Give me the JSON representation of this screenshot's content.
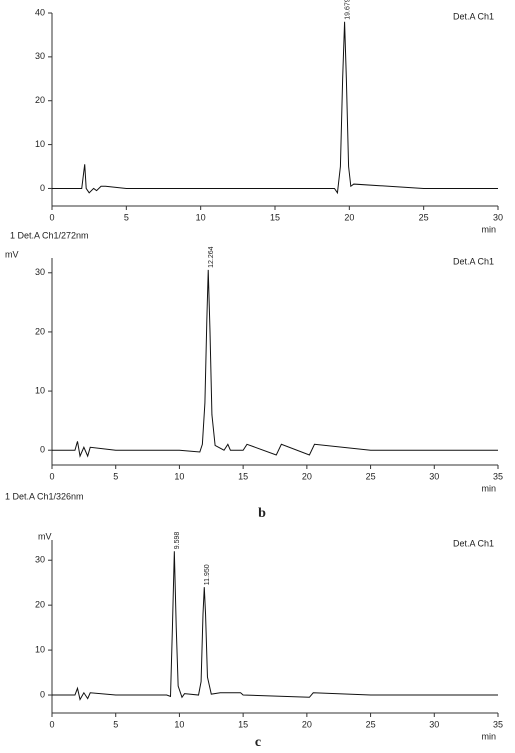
{
  "chart_data": [
    {
      "type": "line",
      "detector": "Det.A Ch1",
      "x_label": "min",
      "footer": "1 Det.A Ch1/272nm",
      "x": [
        0,
        2.0,
        2.2,
        2.3,
        2.5,
        2.8,
        3.0,
        3.3,
        3.6,
        5,
        10,
        15,
        19.0,
        19.2,
        19.4,
        19.55,
        19.68,
        19.8,
        19.95,
        20.1,
        20.3,
        25,
        30
      ],
      "values": [
        0,
        0,
        5.5,
        0,
        -1,
        0,
        -0.5,
        0.5,
        0.5,
        0,
        0,
        0,
        0,
        -1,
        5,
        25,
        38,
        25,
        5,
        0.5,
        1,
        0,
        0
      ],
      "color": "#111111",
      "peaks": [
        {
          "value": 19.679,
          "label": "19.679",
          "y": 38
        }
      ],
      "xlim": [
        0,
        30
      ],
      "xticks": [
        0,
        5,
        10,
        15,
        20,
        25,
        30
      ],
      "ylim": [
        -4,
        40
      ],
      "yticks": [
        0,
        10,
        20,
        30,
        40
      ]
    },
    {
      "type": "line",
      "y_label": "mV",
      "detector": "Det.A Ch1",
      "x_label": "min",
      "footer": "1 Det.A Ch1/326nm",
      "panel": "b",
      "x": [
        0,
        1.8,
        2.0,
        2.2,
        2.5,
        2.8,
        3.0,
        5,
        10,
        11.6,
        11.8,
        12.0,
        12.15,
        12.26,
        12.4,
        12.55,
        12.8,
        13.5,
        13.8,
        14,
        15,
        15.3,
        17.6,
        18.0,
        20.2,
        20.6,
        25,
        30,
        35
      ],
      "values": [
        0,
        0,
        1.5,
        -1,
        0.5,
        -1,
        0.5,
        0,
        0,
        -0.3,
        1,
        8,
        22,
        30.5,
        20,
        6,
        0.8,
        0,
        1,
        0,
        0,
        1,
        -0.8,
        1,
        -0.8,
        1,
        0,
        0,
        0
      ],
      "color": "#111111",
      "peaks": [
        {
          "value": 12.264,
          "label": "12.264",
          "y": 30.5
        }
      ],
      "xlim": [
        0,
        35
      ],
      "xticks": [
        0,
        5,
        10,
        15,
        20,
        25,
        30,
        35
      ],
      "ylim": [
        -2.5,
        32.5
      ],
      "yticks": [
        0,
        10,
        20,
        30
      ]
    },
    {
      "type": "line",
      "y_label": "mV",
      "detector": "Det.A Ch1",
      "x_label": "min",
      "panel": "c",
      "x": [
        0,
        1.8,
        2.0,
        2.2,
        2.5,
        2.8,
        3.0,
        5,
        9,
        9.3,
        9.45,
        9.6,
        9.75,
        9.9,
        10.2,
        10.4,
        11.5,
        11.7,
        11.85,
        11.95,
        12.05,
        12.2,
        12.5,
        13.2,
        14.8,
        15,
        20.2,
        20.5,
        25,
        30,
        35
      ],
      "values": [
        0,
        0,
        1.5,
        -1,
        0.5,
        -0.8,
        0.5,
        0,
        0,
        -0.3,
        15,
        32,
        15,
        2,
        -0.5,
        0.3,
        0,
        3,
        18,
        24,
        18,
        4,
        0.2,
        0.5,
        0.5,
        0,
        -0.5,
        0.5,
        0,
        0,
        0
      ],
      "color": "#111111",
      "peaks": [
        {
          "value": 9.598,
          "label": "9.598",
          "y": 32
        },
        {
          "value": 11.95,
          "label": "11.950",
          "y": 24
        }
      ],
      "xlim": [
        0,
        35
      ],
      "xticks": [
        0,
        5,
        10,
        15,
        20,
        25,
        30,
        35
      ],
      "ylim": [
        -4,
        34.5
      ],
      "yticks": [
        0,
        10,
        20,
        30
      ]
    }
  ]
}
